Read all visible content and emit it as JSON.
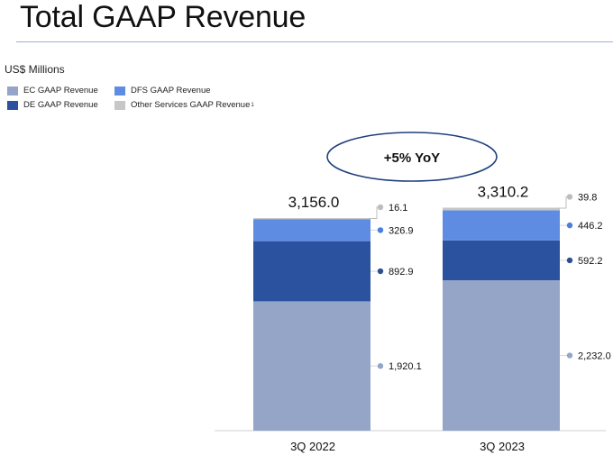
{
  "title": "Total GAAP Revenue",
  "units": "US$ Millions",
  "legend": [
    {
      "label": "EC GAAP Revenue",
      "color": "#94a5c8"
    },
    {
      "label": "DFS GAAP Revenue",
      "color": "#5f8ce3"
    },
    {
      "label": "DE GAAP Revenue",
      "color": "#2b529e"
    },
    {
      "label": "Other Services GAAP Revenue",
      "sup": "1",
      "color": "#c7c7c7"
    }
  ],
  "callout": "+5% YoY",
  "chart_data": {
    "type": "bar",
    "stacked": true,
    "title": "Total GAAP Revenue",
    "ylabel": "US$ Millions",
    "categories": [
      "3Q 2022",
      "3Q 2023"
    ],
    "series": [
      {
        "name": "EC GAAP Revenue",
        "values": [
          1920.1,
          2232.0
        ],
        "labels": [
          "1,920.1",
          "2,232.0"
        ],
        "color": "#94a5c8",
        "dot": "#94a5c8"
      },
      {
        "name": "DE GAAP Revenue",
        "values": [
          892.9,
          592.2
        ],
        "labels": [
          "892.9",
          "592.2"
        ],
        "color": "#2b529e",
        "dot": "#2b4f8f"
      },
      {
        "name": "DFS GAAP Revenue",
        "values": [
          326.9,
          446.2
        ],
        "labels": [
          "326.9",
          "446.2"
        ],
        "color": "#5f8ce3",
        "dot": "#4a7fe0"
      },
      {
        "name": "Other Services GAAP Revenue",
        "values": [
          16.1,
          39.8
        ],
        "labels": [
          "16.1",
          "39.8"
        ],
        "color": "#c7c7c7",
        "dot": "#bdbdbd"
      }
    ],
    "totals": [
      "3,156.0",
      "3,310.2"
    ],
    "total_values": [
      3156.0,
      3310.2
    ]
  }
}
